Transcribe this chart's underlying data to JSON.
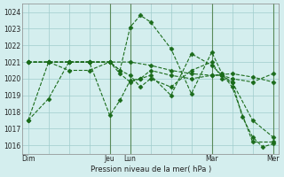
{
  "background_color": "#d4eeee",
  "grid_color": "#a0cccc",
  "line_color": "#1a6b1a",
  "vline_color": "#5a8a5a",
  "ylabel_text": "Pression niveau de la mer( hPa )",
  "ylim": [
    1015.5,
    1024.5
  ],
  "yticks": [
    1016,
    1017,
    1018,
    1019,
    1020,
    1021,
    1022,
    1023,
    1024
  ],
  "vlines": [
    4,
    5,
    9,
    12
  ],
  "tick_pos": [
    0,
    4,
    5,
    9,
    12
  ],
  "tick_labels": [
    "Dim",
    "Jeu",
    "Lun",
    "Mar",
    "Mer"
  ],
  "lines": [
    {
      "x": [
        0,
        1,
        2,
        3,
        4,
        4.5,
        5,
        5.5,
        6,
        7,
        8,
        9,
        9.5,
        10,
        11,
        12
      ],
      "y": [
        1017.5,
        1018.8,
        1021.0,
        1021.0,
        1021.0,
        1020.5,
        1023.1,
        1023.8,
        1023.4,
        1021.8,
        1019.1,
        1021.6,
        1020.3,
        1019.5,
        1016.2,
        1016.2
      ]
    },
    {
      "x": [
        0,
        1,
        2,
        3,
        4,
        5,
        6,
        7,
        8,
        9,
        10,
        11,
        12
      ],
      "y": [
        1021.0,
        1021.0,
        1021.0,
        1021.0,
        1021.0,
        1021.0,
        1020.8,
        1020.5,
        1020.3,
        1020.2,
        1020.3,
        1020.1,
        1019.8
      ]
    },
    {
      "x": [
        0,
        1,
        2,
        3,
        4,
        4.5,
        5,
        5.5,
        6,
        7,
        8,
        9,
        9.5,
        10,
        11,
        12
      ],
      "y": [
        1021.0,
        1021.0,
        1020.5,
        1020.5,
        1021.0,
        1020.3,
        1019.8,
        1020.0,
        1020.5,
        1020.2,
        1020.0,
        1020.2,
        1020.2,
        1020.0,
        1019.8,
        1020.3
      ]
    },
    {
      "x": [
        0,
        1,
        2,
        3,
        4,
        4.5,
        5,
        5.5,
        6,
        7,
        8,
        9,
        9.5,
        10,
        10.5,
        11,
        11.5,
        12
      ],
      "y": [
        1017.5,
        1021.0,
        1021.0,
        1021.0,
        1017.8,
        1018.7,
        1019.9,
        1020.0,
        1020.2,
        1019.0,
        1021.5,
        1020.8,
        1020.2,
        1019.8,
        1017.7,
        1016.5,
        1015.9,
        1016.1
      ]
    },
    {
      "x": [
        0,
        1,
        2,
        3,
        4,
        4.5,
        5,
        5.5,
        6,
        7,
        8,
        9,
        9.5,
        10,
        11,
        12
      ],
      "y": [
        1021.0,
        1021.0,
        1021.0,
        1021.0,
        1021.0,
        1020.5,
        1020.2,
        1019.5,
        1020.0,
        1019.5,
        1020.5,
        1021.0,
        1020.0,
        1019.8,
        1017.5,
        1016.5
      ]
    }
  ]
}
